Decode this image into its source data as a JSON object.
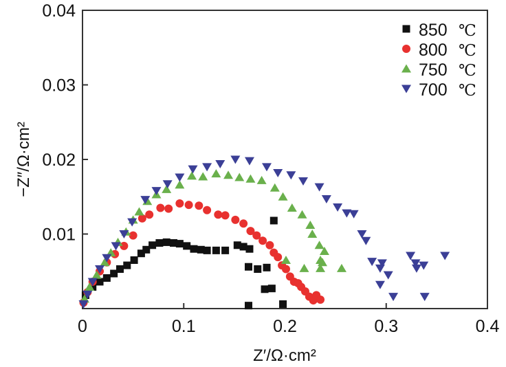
{
  "chart_data": {
    "type": "scatter",
    "title": "",
    "xlabel": "Z′/Ω·cm²",
    "ylabel": "−Z″/Ω·cm²",
    "xlim": [
      0,
      0.4
    ],
    "ylim": [
      0,
      0.04
    ],
    "xticks": [
      0,
      0.1,
      0.2,
      0.3,
      0.4
    ],
    "xtick_labels": [
      "0",
      "0.1",
      "0.2",
      "0.3",
      "0.4"
    ],
    "yticks": [
      0.01,
      0.02,
      0.03,
      0.04
    ],
    "ytick_labels": [
      "0.01",
      "0.02",
      "0.03",
      "0.04"
    ],
    "grid": false,
    "legend_position": "top-right",
    "series": [
      {
        "name": "850",
        "unit": "℃",
        "marker": "square",
        "color": "#111111",
        "points": [
          [
            0.003,
            0.0018
          ],
          [
            0.01,
            0.0029
          ],
          [
            0.017,
            0.0036
          ],
          [
            0.024,
            0.0041
          ],
          [
            0.031,
            0.0047
          ],
          [
            0.037,
            0.0053
          ],
          [
            0.044,
            0.0058
          ],
          [
            0.051,
            0.0065
          ],
          [
            0.058,
            0.0074
          ],
          [
            0.063,
            0.0079
          ],
          [
            0.069,
            0.0085
          ],
          [
            0.076,
            0.0088
          ],
          [
            0.083,
            0.0089
          ],
          [
            0.09,
            0.0088
          ],
          [
            0.096,
            0.0087
          ],
          [
            0.103,
            0.0084
          ],
          [
            0.11,
            0.008
          ],
          [
            0.117,
            0.0079
          ],
          [
            0.123,
            0.0078
          ],
          [
            0.132,
            0.0078
          ],
          [
            0.141,
            0.0078
          ],
          [
            0.153,
            0.0085
          ],
          [
            0.159,
            0.0083
          ],
          [
            0.165,
            0.008
          ],
          [
            0.189,
            0.0118
          ],
          [
            0.164,
            0.0056
          ],
          [
            0.173,
            0.0053
          ],
          [
            0.182,
            0.0055
          ],
          [
            0.18,
            0.0026
          ],
          [
            0.187,
            0.0027
          ],
          [
            0.164,
            0.0004
          ],
          [
            0.198,
            0.0006
          ]
        ]
      },
      {
        "name": "800",
        "unit": "℃",
        "marker": "circle",
        "color": "#e8312f",
        "points": [
          [
            0.001,
            0.0008
          ],
          [
            0.005,
            0.0022
          ],
          [
            0.01,
            0.0036
          ],
          [
            0.017,
            0.005
          ],
          [
            0.024,
            0.0062
          ],
          [
            0.032,
            0.0073
          ],
          [
            0.041,
            0.0084
          ],
          [
            0.05,
            0.0098
          ],
          [
            0.059,
            0.0121
          ],
          [
            0.066,
            0.0126
          ],
          [
            0.077,
            0.0135
          ],
          [
            0.085,
            0.0134
          ],
          [
            0.096,
            0.0141
          ],
          [
            0.105,
            0.0139
          ],
          [
            0.115,
            0.0138
          ],
          [
            0.123,
            0.0132
          ],
          [
            0.134,
            0.0126
          ],
          [
            0.141,
            0.0125
          ],
          [
            0.151,
            0.0119
          ],
          [
            0.159,
            0.0114
          ],
          [
            0.166,
            0.0104
          ],
          [
            0.172,
            0.0098
          ],
          [
            0.178,
            0.0091
          ],
          [
            0.185,
            0.0085
          ],
          [
            0.189,
            0.0075
          ],
          [
            0.193,
            0.0069
          ],
          [
            0.197,
            0.0058
          ],
          [
            0.201,
            0.0053
          ],
          [
            0.205,
            0.0043
          ],
          [
            0.209,
            0.0036
          ],
          [
            0.213,
            0.0034
          ],
          [
            0.216,
            0.0029
          ],
          [
            0.22,
            0.0023
          ],
          [
            0.224,
            0.0016
          ],
          [
            0.228,
            0.0011
          ],
          [
            0.231,
            0.0018
          ],
          [
            0.235,
            0.0012
          ]
        ]
      },
      {
        "name": "750",
        "unit": "℃",
        "marker": "triangle-up",
        "color": "#6ab04c",
        "points": [
          [
            0.002,
            0.0013
          ],
          [
            0.007,
            0.0029
          ],
          [
            0.014,
            0.0045
          ],
          [
            0.022,
            0.0062
          ],
          [
            0.028,
            0.0075
          ],
          [
            0.035,
            0.0089
          ],
          [
            0.043,
            0.0103
          ],
          [
            0.05,
            0.0119
          ],
          [
            0.056,
            0.013
          ],
          [
            0.064,
            0.0144
          ],
          [
            0.073,
            0.0153
          ],
          [
            0.083,
            0.016
          ],
          [
            0.096,
            0.0166
          ],
          [
            0.108,
            0.0178
          ],
          [
            0.119,
            0.0177
          ],
          [
            0.132,
            0.0181
          ],
          [
            0.144,
            0.0179
          ],
          [
            0.155,
            0.0176
          ],
          [
            0.166,
            0.0174
          ],
          [
            0.177,
            0.0172
          ],
          [
            0.19,
            0.0162
          ],
          [
            0.198,
            0.015
          ],
          [
            0.207,
            0.0135
          ],
          [
            0.217,
            0.0126
          ],
          [
            0.225,
            0.0112
          ],
          [
            0.227,
            0.01
          ],
          [
            0.234,
            0.0085
          ],
          [
            0.239,
            0.0077
          ],
          [
            0.235,
            0.0065
          ],
          [
            0.237,
            0.0062
          ],
          [
            0.201,
            0.0065
          ],
          [
            0.219,
            0.0054
          ],
          [
            0.235,
            0.0054
          ],
          [
            0.256,
            0.0054
          ]
        ]
      },
      {
        "name": "700",
        "unit": "℃",
        "marker": "triangle-down",
        "color": "#3b3f96",
        "points": [
          [
            0.001,
            0.0006
          ],
          [
            0.005,
            0.0019
          ],
          [
            0.01,
            0.0036
          ],
          [
            0.017,
            0.0053
          ],
          [
            0.024,
            0.0068
          ],
          [
            0.033,
            0.0084
          ],
          [
            0.041,
            0.01
          ],
          [
            0.049,
            0.0116
          ],
          [
            0.062,
            0.0146
          ],
          [
            0.073,
            0.0158
          ],
          [
            0.084,
            0.0167
          ],
          [
            0.096,
            0.0176
          ],
          [
            0.109,
            0.0187
          ],
          [
            0.123,
            0.019
          ],
          [
            0.136,
            0.0194
          ],
          [
            0.151,
            0.02
          ],
          [
            0.165,
            0.0198
          ],
          [
            0.182,
            0.019
          ],
          [
            0.193,
            0.0182
          ],
          [
            0.206,
            0.0179
          ],
          [
            0.218,
            0.0171
          ],
          [
            0.234,
            0.0163
          ],
          [
            0.241,
            0.0147
          ],
          [
            0.252,
            0.0136
          ],
          [
            0.261,
            0.0128
          ],
          [
            0.268,
            0.0127
          ],
          [
            0.276,
            0.01
          ],
          [
            0.28,
            0.0091
          ],
          [
            0.286,
            0.0063
          ],
          [
            0.296,
            0.0061
          ],
          [
            0.294,
            0.0054
          ],
          [
            0.302,
            0.0045
          ],
          [
            0.294,
            0.0032
          ],
          [
            0.307,
            0.0016
          ],
          [
            0.324,
            0.0071
          ],
          [
            0.329,
            0.0061
          ],
          [
            0.33,
            0.0054
          ],
          [
            0.337,
            0.0058
          ],
          [
            0.338,
            0.0016
          ],
          [
            0.358,
            0.0071
          ]
        ]
      }
    ]
  }
}
